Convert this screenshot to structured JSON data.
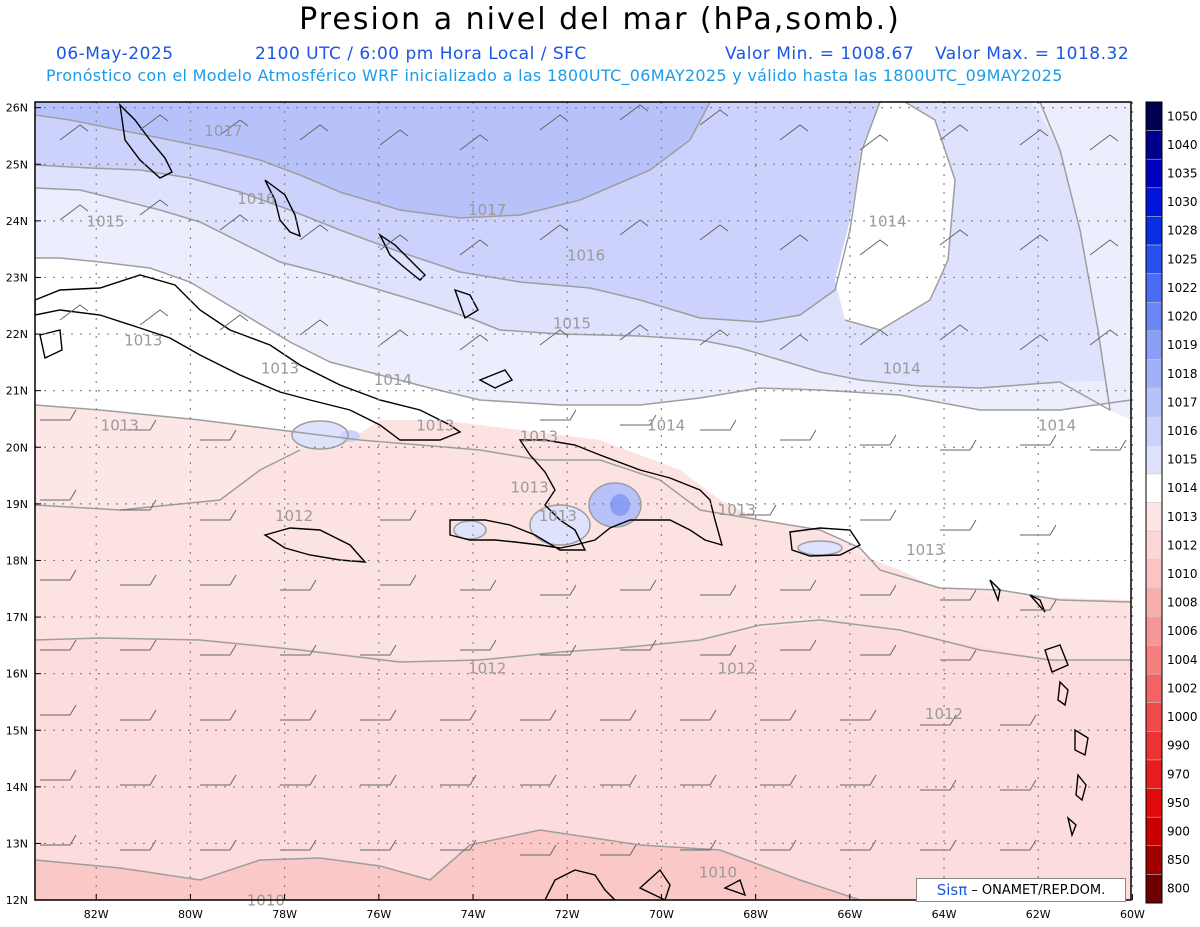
{
  "header": {
    "title": "Presion a nivel del mar (hPa,somb.)",
    "date": "06-May-2025",
    "time": "2100 UTC / 6:00 pm Hora Local / SFC",
    "min": "Valor Min. = 1008.67",
    "max": "Valor Max. = 1018.32",
    "forecast": "Pronóstico con el Modelo Atmosférico WRF inicializado a las 1800UTC_06MAY2025 y válido hasta las  1800UTC_09MAY2025"
  },
  "lat_labels": [
    "26N",
    "25N",
    "24N",
    "23N",
    "22N",
    "21N",
    "20N",
    "19N",
    "18N",
    "17N",
    "16N",
    "15N",
    "14N",
    "13N",
    "12N"
  ],
  "lon_labels": [
    "82W",
    "80W",
    "78W",
    "76W",
    "74W",
    "72W",
    "70W",
    "68W",
    "66W",
    "64W",
    "62W",
    "60W"
  ],
  "colorbar": {
    "levels": [
      "1050",
      "1040",
      "1035",
      "1030",
      "1028",
      "1025",
      "1022",
      "1020",
      "1019",
      "1018",
      "1017",
      "1016",
      "1015",
      "1014",
      "1013",
      "1012",
      "1010",
      "1008",
      "1006",
      "1004",
      "1002",
      "1000",
      "990",
      "970",
      "950",
      "900",
      "850",
      "800"
    ],
    "colors": [
      "#000050",
      "#00008c",
      "#0000be",
      "#0014dc",
      "#0a2ee6",
      "#2850ee",
      "#4a6cf2",
      "#6a86f4",
      "#8a9ef6",
      "#a2b0f8",
      "#b8c2fa",
      "#ccd2fb",
      "#dfe2fc",
      "#ffffff",
      "#fde6e6",
      "#fcd6d6",
      "#fbc4c4",
      "#f9aeae",
      "#f79696",
      "#f57e7e",
      "#f26464",
      "#ef4a4a",
      "#ec3232",
      "#e81c1c",
      "#e00a0a",
      "#c80000",
      "#a00000",
      "#6e0000"
    ]
  },
  "contours": [
    {
      "label": "1017",
      "lon": -79.3,
      "lat": 25.5
    },
    {
      "label": "1017",
      "lon": -73.7,
      "lat": 24.1
    },
    {
      "label": "1016",
      "lon": -78.6,
      "lat": 24.3
    },
    {
      "label": "1016",
      "lon": -71.6,
      "lat": 23.3
    },
    {
      "label": "1015",
      "lon": -81.8,
      "lat": 23.9
    },
    {
      "label": "1015",
      "lon": -71.9,
      "lat": 22.1
    },
    {
      "label": "1014",
      "lon": -75.7,
      "lat": 21.1
    },
    {
      "label": "1014",
      "lon": -69.9,
      "lat": 20.3
    },
    {
      "label": "1014",
      "lon": -65.2,
      "lat": 23.9
    },
    {
      "label": "1014",
      "lon": -64.9,
      "lat": 21.3
    },
    {
      "label": "1014",
      "lon": -61.6,
      "lat": 20.3
    },
    {
      "label": "1013",
      "lon": -81.0,
      "lat": 21.8
    },
    {
      "label": "1013",
      "lon": -78.1,
      "lat": 21.3
    },
    {
      "label": "1013",
      "lon": -81.5,
      "lat": 20.3
    },
    {
      "label": "1013",
      "lon": -74.8,
      "lat": 20.3
    },
    {
      "label": "1013",
      "lon": -72.6,
      "lat": 20.1
    },
    {
      "label": "1013",
      "lon": -72.8,
      "lat": 19.2
    },
    {
      "label": "1013",
      "lon": -72.2,
      "lat": 18.7
    },
    {
      "label": "1013",
      "lon": -68.4,
      "lat": 18.8
    },
    {
      "label": "1013",
      "lon": -64.4,
      "lat": 18.1
    },
    {
      "label": "1012",
      "lon": -77.8,
      "lat": 18.7
    },
    {
      "label": "1012",
      "lon": -73.7,
      "lat": 16.0
    },
    {
      "label": "1012",
      "lon": -68.4,
      "lat": 16.0
    },
    {
      "label": "1012",
      "lon": -64.0,
      "lat": 15.2
    },
    {
      "label": "1010",
      "lon": -68.8,
      "lat": 12.4
    },
    {
      "label": "1010",
      "lon": -78.4,
      "lat": 11.9
    }
  ],
  "credit": {
    "logo": "Sisπ",
    "text": "– ONAMET/REP.DOM."
  }
}
